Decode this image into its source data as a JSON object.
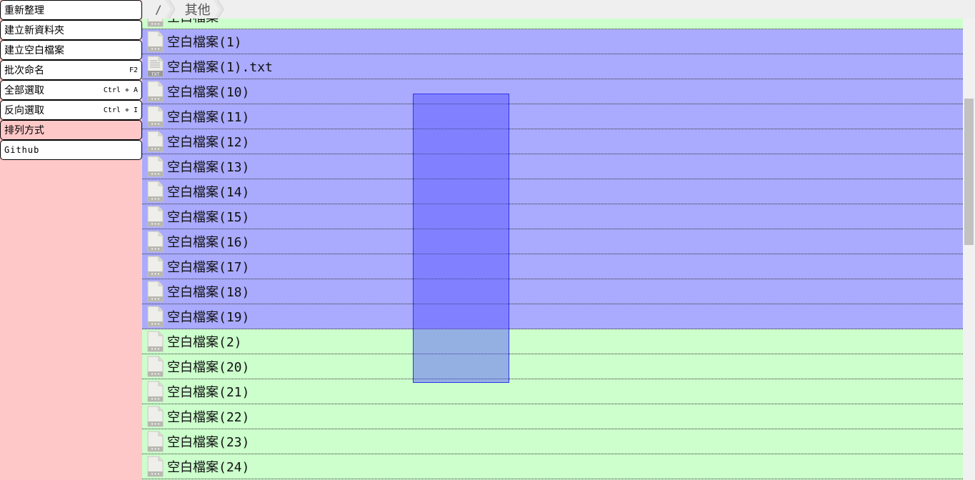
{
  "menu": {
    "items": [
      {
        "label": "重新整理",
        "shortcut": ""
      },
      {
        "label": "建立新資料夾",
        "shortcut": ""
      },
      {
        "label": "建立空白檔案",
        "shortcut": ""
      },
      {
        "label": "批次命名",
        "shortcut": "F2"
      },
      {
        "label": "全部選取",
        "shortcut": "Ctrl + A"
      },
      {
        "label": "反向選取",
        "shortcut": "Ctrl + I"
      },
      {
        "label": "排列方式",
        "shortcut": ""
      },
      {
        "label": "Github",
        "shortcut": ""
      }
    ]
  },
  "breadcrumb": {
    "root": "/",
    "current": "其他"
  },
  "files": [
    {
      "name": "空白檔案",
      "suffix": "",
      "icon": "blank-file-icon",
      "selected": false
    },
    {
      "name": "空白檔案",
      "suffix": "(1)",
      "icon": "blank-file-icon",
      "selected": true
    },
    {
      "name": "空白檔案",
      "suffix": "(1).txt",
      "icon": "txt-file-icon",
      "selected": true
    },
    {
      "name": "空白檔案",
      "suffix": "(10)",
      "icon": "blank-file-icon",
      "selected": true
    },
    {
      "name": "空白檔案",
      "suffix": "(11)",
      "icon": "blank-file-icon",
      "selected": true
    },
    {
      "name": "空白檔案",
      "suffix": "(12)",
      "icon": "blank-file-icon",
      "selected": true
    },
    {
      "name": "空白檔案",
      "suffix": "(13)",
      "icon": "blank-file-icon",
      "selected": true
    },
    {
      "name": "空白檔案",
      "suffix": "(14)",
      "icon": "blank-file-icon",
      "selected": true
    },
    {
      "name": "空白檔案",
      "suffix": "(15)",
      "icon": "blank-file-icon",
      "selected": true
    },
    {
      "name": "空白檔案",
      "suffix": "(16)",
      "icon": "blank-file-icon",
      "selected": true
    },
    {
      "name": "空白檔案",
      "suffix": "(17)",
      "icon": "blank-file-icon",
      "selected": true
    },
    {
      "name": "空白檔案",
      "suffix": "(18)",
      "icon": "blank-file-icon",
      "selected": true
    },
    {
      "name": "空白檔案",
      "suffix": "(19)",
      "icon": "blank-file-icon",
      "selected": true
    },
    {
      "name": "空白檔案",
      "suffix": "(2)",
      "icon": "blank-file-icon",
      "selected": false
    },
    {
      "name": "空白檔案",
      "suffix": "(20)",
      "icon": "blank-file-icon",
      "selected": false
    },
    {
      "name": "空白檔案",
      "suffix": "(21)",
      "icon": "blank-file-icon",
      "selected": false
    },
    {
      "name": "空白檔案",
      "suffix": "(22)",
      "icon": "blank-file-icon",
      "selected": false
    },
    {
      "name": "空白檔案",
      "suffix": "(23)",
      "icon": "blank-file-icon",
      "selected": false
    },
    {
      "name": "空白檔案",
      "suffix": "(24)",
      "icon": "blank-file-icon",
      "selected": false
    }
  ],
  "colors": {
    "menu_background": "#ffc8c8",
    "row_default": "#ccffcc",
    "row_selected": "#aaaaff",
    "selection_rectangle": "#5050ff"
  }
}
